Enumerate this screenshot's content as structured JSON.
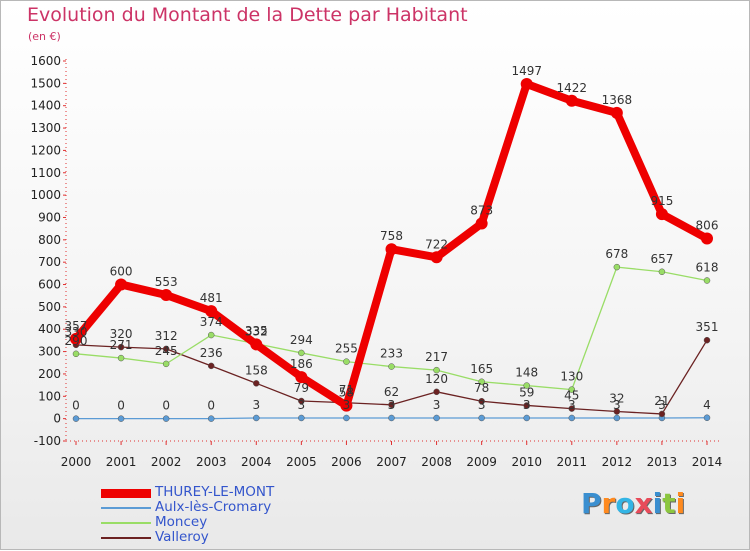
{
  "header": {
    "title": "Evolution du Montant de la Dette par Habitant",
    "subtitle": "(en €)"
  },
  "logo": {
    "letters": [
      "P",
      "r",
      "o",
      "x",
      "i",
      "t",
      "i"
    ],
    "colors": [
      "#3a8fd0",
      "#ff8a1f",
      "#33b5e5",
      "#e84b5a",
      "#3a8fd0",
      "#8cc63f",
      "#ff8a1f"
    ]
  },
  "chart_data": {
    "type": "line",
    "title": "Evolution du Montant de la Dette par Habitant",
    "subtitle": "(en €)",
    "x": [
      2000,
      2001,
      2002,
      2003,
      2004,
      2005,
      2006,
      2007,
      2008,
      2009,
      2010,
      2011,
      2012,
      2013,
      2014
    ],
    "ylim": [
      -100,
      1600
    ],
    "yticks": [
      -100,
      0,
      100,
      200,
      300,
      400,
      500,
      600,
      700,
      800,
      900,
      1000,
      1100,
      1200,
      1300,
      1400,
      1500,
      1600
    ],
    "grid": false,
    "legend_position": "bottom-left",
    "series": [
      {
        "name": "THUREY-LE-MONT",
        "color": "#ee0000",
        "values": [
          357,
          600,
          553,
          481,
          332,
          186,
          58,
          758,
          722,
          873,
          1497,
          1422,
          1368,
          915,
          806
        ]
      },
      {
        "name": "Aulx-lès-Cromary",
        "color": "#5b9bd5",
        "values": [
          0,
          0,
          0,
          0,
          3,
          3,
          3,
          3,
          3,
          3,
          3,
          3,
          3,
          3,
          4
        ]
      },
      {
        "name": "Moncey",
        "color": "#99dd66",
        "values": [
          290,
          271,
          245,
          374,
          335,
          294,
          255,
          233,
          217,
          165,
          148,
          130,
          678,
          657,
          618
        ]
      },
      {
        "name": "Valleroy",
        "color": "#6b2222",
        "values": [
          330,
          320,
          312,
          236,
          158,
          79,
          71,
          62,
          120,
          78,
          59,
          45,
          32,
          21,
          351
        ]
      }
    ]
  }
}
